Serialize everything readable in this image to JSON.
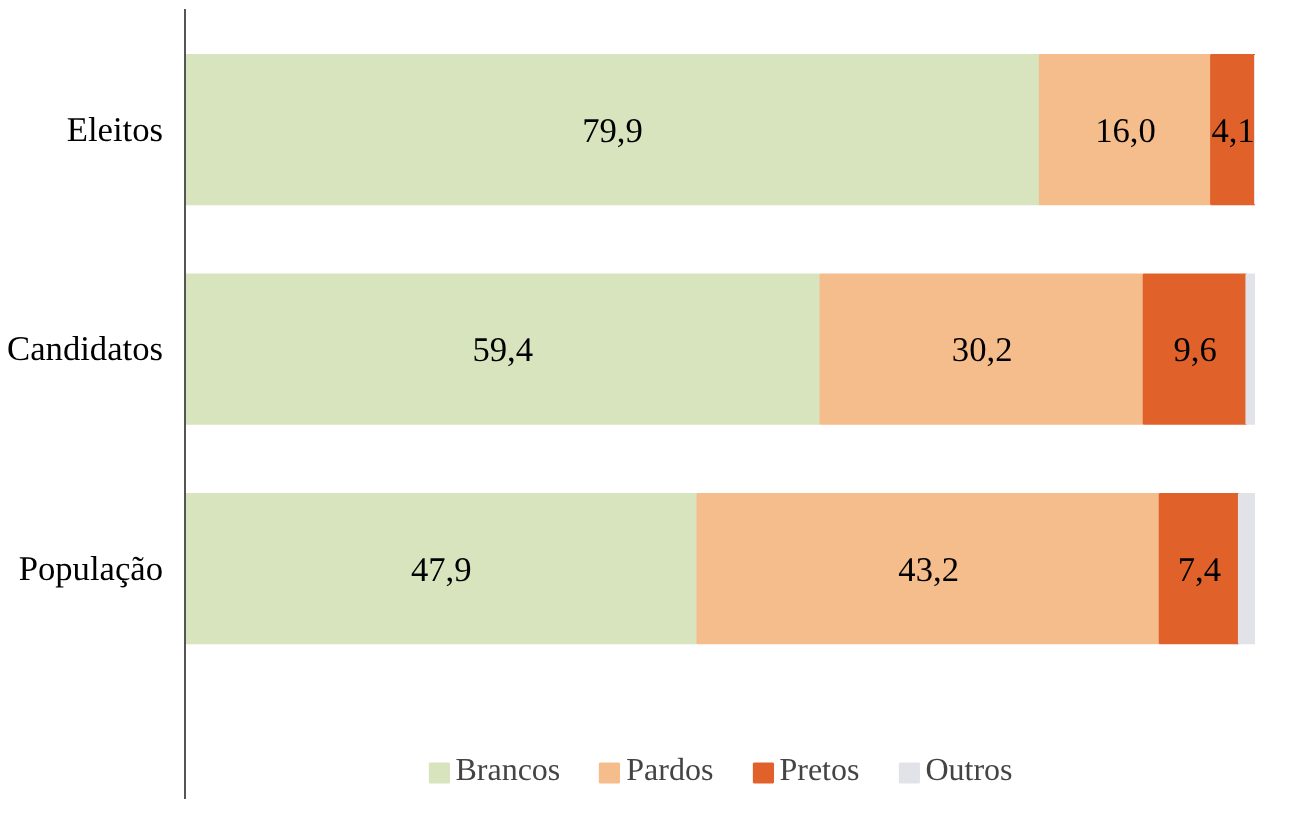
{
  "chart_data": {
    "type": "bar",
    "orientation": "horizontal",
    "stacked": true,
    "categories": [
      "Eleitos",
      "Candidatos",
      "População"
    ],
    "series": [
      {
        "name": "Brancos",
        "color": "#d7e4bd",
        "values": [
          79.9,
          59.4,
          47.9
        ],
        "value_labels": [
          "79,9",
          "59,4",
          "47,9"
        ]
      },
      {
        "name": "Pardos",
        "color": "#f5bc8c",
        "values": [
          16.0,
          30.2,
          43.2
        ],
        "value_labels": [
          "16,0",
          "30,2",
          "43,2"
        ]
      },
      {
        "name": "Pretos",
        "color": "#e0622a",
        "values": [
          4.1,
          9.6,
          7.4
        ],
        "value_labels": [
          "4,1",
          "9,6",
          "7,4"
        ]
      },
      {
        "name": "Outros",
        "color": "#e2e3e8",
        "values": [
          0,
          0.8,
          1.5
        ],
        "value_labels": [
          null,
          null,
          null
        ]
      }
    ],
    "xlim": [
      0,
      100
    ],
    "tick_labels": "y",
    "grid": false,
    "legend": "bottom"
  }
}
